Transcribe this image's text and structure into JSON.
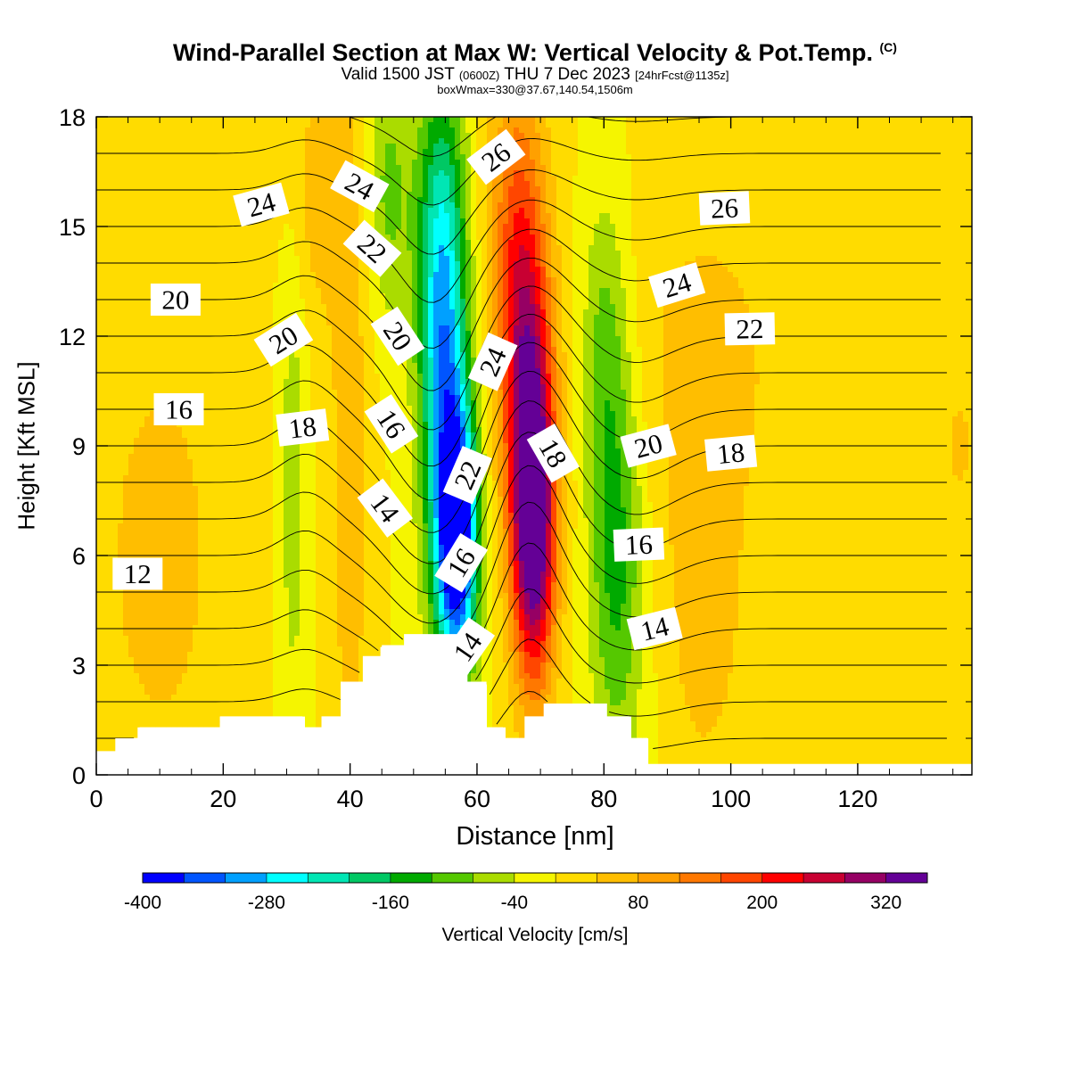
{
  "title": {
    "main": "Wind-Parallel Section at Max W: Vertical Velocity & Pot.Temp.",
    "mark": "(C)",
    "valid_pre": "Valid 1500 JST",
    "valid_utc": "(0600Z)",
    "valid_date": "THU 7 Dec 2023",
    "valid_fcst": "[24hrFcst@1135z]",
    "boxinfo": "boxWmax=330@37.67,140.54,1506m"
  },
  "chart_data": {
    "type": "heatmap",
    "xlabel": "Distance [nm]",
    "ylabel": "Height [Kft MSL]",
    "xlim": [
      0,
      138
    ],
    "ylim": [
      0,
      18
    ],
    "xticks": [
      0,
      20,
      40,
      60,
      80,
      100,
      120
    ],
    "yticks": [
      0,
      3,
      6,
      9,
      12,
      15,
      18
    ],
    "colorbar": {
      "label": "Vertical Velocity [cm/s]",
      "min": -400,
      "max": 360,
      "step": 40,
      "tick_values": [
        -400,
        -280,
        -160,
        -40,
        80,
        200,
        320
      ],
      "colors": [
        "#0000ff",
        "#0055ff",
        "#00a0ff",
        "#00ffff",
        "#00e6b4",
        "#00c864",
        "#00aa00",
        "#55c800",
        "#aadc00",
        "#f5f500",
        "#ffdc00",
        "#ffbe00",
        "#ffa000",
        "#ff7800",
        "#ff4600",
        "#ff0000",
        "#c80032",
        "#960064",
        "#640096"
      ]
    },
    "velocity_features": [
      {
        "x": 57,
        "y": 6.5,
        "sx": 2.2,
        "sy": 2.4,
        "w": -400
      },
      {
        "x": 55,
        "y": 10,
        "sx": 2.6,
        "sy": 4.5,
        "w": -220
      },
      {
        "x": 54,
        "y": 14.5,
        "sx": 2.8,
        "sy": 3.5,
        "w": -150
      },
      {
        "x": 69,
        "y": 6.5,
        "sx": 2.4,
        "sy": 3,
        "w": 330
      },
      {
        "x": 68,
        "y": 10.5,
        "sx": 2.8,
        "sy": 3.5,
        "w": 220
      },
      {
        "x": 66,
        "y": 15,
        "sx": 3.2,
        "sy": 3.5,
        "w": 130
      },
      {
        "x": 82,
        "y": 6,
        "sx": 3,
        "sy": 4,
        "w": -140
      },
      {
        "x": 80,
        "y": 12,
        "sx": 2.5,
        "sy": 3,
        "w": -80
      },
      {
        "x": 31,
        "y": 8,
        "sx": 1.4,
        "sy": 4.5,
        "w": -70
      },
      {
        "x": 40,
        "y": 8,
        "sx": 2.2,
        "sy": 6,
        "w": 70
      },
      {
        "x": 36,
        "y": 16,
        "sx": 3.5,
        "sy": 2.5,
        "w": 70
      },
      {
        "x": 46,
        "y": 16,
        "sx": 2.5,
        "sy": 2.5,
        "w": -90
      },
      {
        "x": 10,
        "y": 6,
        "sx": 8,
        "sy": 5,
        "w": 55
      },
      {
        "x": 96,
        "y": 11,
        "sx": 10,
        "sy": 4,
        "w": 55
      },
      {
        "x": 96,
        "y": 4,
        "sx": 4,
        "sy": 3,
        "w": 60
      },
      {
        "x": 136,
        "y": 9,
        "sx": 3,
        "sy": 2,
        "w": 45
      }
    ],
    "terrain": [
      [
        0,
        0.65
      ],
      [
        3,
        0.65
      ],
      [
        3,
        1.0
      ],
      [
        6.5,
        1.0
      ],
      [
        6.5,
        1.3
      ],
      [
        19.5,
        1.3
      ],
      [
        19.5,
        1.6
      ],
      [
        32.5,
        1.6
      ],
      [
        32.5,
        1.3
      ],
      [
        35.5,
        1.3
      ],
      [
        35.5,
        1.6
      ],
      [
        38.5,
        1.6
      ],
      [
        38.5,
        2.55
      ],
      [
        42,
        2.55
      ],
      [
        42,
        3.25
      ],
      [
        45,
        3.25
      ],
      [
        45,
        3.55
      ],
      [
        48.5,
        3.55
      ],
      [
        48.5,
        3.85
      ],
      [
        58.5,
        3.85
      ],
      [
        58.5,
        2.55
      ],
      [
        61.5,
        2.55
      ],
      [
        61.5,
        1.3
      ],
      [
        64.5,
        1.3
      ],
      [
        64.5,
        1.0
      ],
      [
        67.5,
        1.0
      ],
      [
        67.5,
        1.6
      ],
      [
        70.5,
        1.6
      ],
      [
        70.5,
        1.95
      ],
      [
        80.5,
        1.95
      ],
      [
        80.5,
        1.6
      ],
      [
        84,
        1.6
      ],
      [
        84,
        1.0
      ],
      [
        87,
        1.0
      ],
      [
        87,
        0.3
      ],
      [
        138,
        0.3
      ]
    ],
    "theta_contour_levels": [
      10,
      11,
      12,
      13,
      14,
      15,
      16,
      17,
      18,
      19,
      20,
      21,
      22,
      23,
      24,
      25,
      26,
      27,
      28
    ],
    "theta_labels": [
      {
        "text": "12",
        "x": 6.5,
        "y": 5.5
      },
      {
        "text": "16",
        "x": 13,
        "y": 10.0
      },
      {
        "text": "20",
        "x": 12.5,
        "y": 13.0
      },
      {
        "text": "24",
        "x": 26,
        "y": 15.6
      },
      {
        "text": "18",
        "x": 32.5,
        "y": 9.5
      },
      {
        "text": "20",
        "x": 29.5,
        "y": 11.9
      },
      {
        "text": "22",
        "x": 43.5,
        "y": 14.4
      },
      {
        "text": "24",
        "x": 41.5,
        "y": 16.1
      },
      {
        "text": "14",
        "x": 45.5,
        "y": 7.3
      },
      {
        "text": "16",
        "x": 46.5,
        "y": 9.6
      },
      {
        "text": "20",
        "x": 47.5,
        "y": 12.0
      },
      {
        "text": "22",
        "x": 58.5,
        "y": 8.2
      },
      {
        "text": "16",
        "x": 57.5,
        "y": 5.8
      },
      {
        "text": "14",
        "x": 58.5,
        "y": 3.5
      },
      {
        "text": "24",
        "x": 62.5,
        "y": 11.3
      },
      {
        "text": "26",
        "x": 63,
        "y": 16.9
      },
      {
        "text": "18",
        "x": 72,
        "y": 8.8
      },
      {
        "text": "20",
        "x": 87,
        "y": 9.0
      },
      {
        "text": "16",
        "x": 85.5,
        "y": 6.3
      },
      {
        "text": "14",
        "x": 88,
        "y": 4.0
      },
      {
        "text": "24",
        "x": 91.5,
        "y": 13.4
      },
      {
        "text": "26",
        "x": 99,
        "y": 15.5
      },
      {
        "text": "22",
        "x": 103,
        "y": 12.2
      },
      {
        "text": "18",
        "x": 100,
        "y": 8.8
      }
    ]
  }
}
